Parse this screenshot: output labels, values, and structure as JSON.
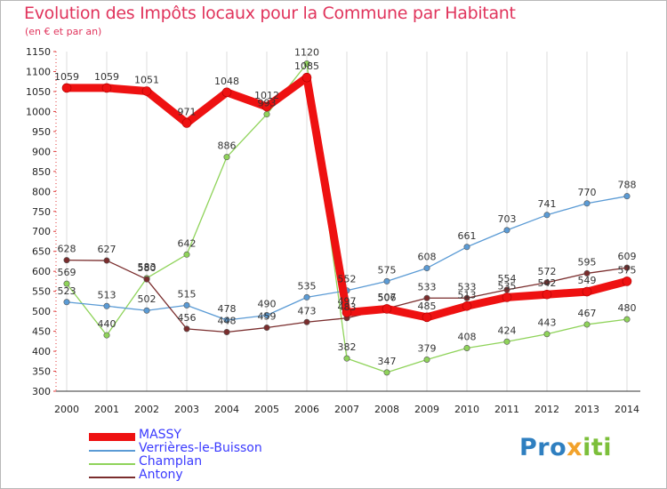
{
  "title": "Evolution des Impôts locaux pour la Commune par Habitant",
  "subtitle": "(en € et par an)",
  "brand": {
    "part1": "Pro",
    "part2": "x",
    "part3": "iti"
  },
  "chart_data": {
    "type": "line",
    "x": [
      "2000",
      "2001",
      "2002",
      "2003",
      "2004",
      "2005",
      "2006",
      "2007",
      "2008",
      "2009",
      "2010",
      "2011",
      "2012",
      "2013",
      "2014"
    ],
    "ylim": [
      300,
      1150
    ],
    "yticks": [
      300,
      350,
      400,
      450,
      500,
      550,
      600,
      650,
      700,
      750,
      800,
      850,
      900,
      950,
      1000,
      1050,
      1100,
      1150
    ],
    "grid": "vertical",
    "legend_position": "bottom-left",
    "series": [
      {
        "name": "MASSY",
        "color": "#ee1111",
        "width": "thick",
        "values": [
          1059,
          1059,
          1051,
          971,
          1048,
          1012,
          1085,
          497,
          506,
          485,
          513,
          535,
          542,
          549,
          575
        ]
      },
      {
        "name": "Verrières-le-Buisson",
        "color": "#5b9bd5",
        "width": "thin",
        "values": [
          523,
          513,
          502,
          515,
          478,
          490,
          535,
          552,
          575,
          608,
          661,
          703,
          741,
          770,
          788
        ]
      },
      {
        "name": "Champlan",
        "color": "#8fd35a",
        "width": "thin",
        "values": [
          569,
          440,
          583,
          642,
          886,
          993,
          1120,
          382,
          347,
          379,
          408,
          424,
          443,
          467,
          480
        ]
      },
      {
        "name": "Antony",
        "color": "#7a2d2d",
        "width": "thin",
        "values": [
          628,
          627,
          580,
          456,
          448,
          459,
          473,
          483,
          507,
          533,
          533,
          554,
          572,
          595,
          609
        ]
      }
    ],
    "data_labels": [
      {
        "series": 0,
        "labels": [
          "1059",
          "1059",
          "1051",
          "971",
          "1048",
          "1012",
          "1085",
          "497",
          "506",
          "485",
          "513",
          "535",
          "542",
          "549",
          "575"
        ]
      },
      {
        "series": 1,
        "labels": [
          "523",
          "513",
          "502",
          "515",
          "478",
          "490",
          "535",
          "552",
          "575",
          "608",
          "661",
          "703",
          "741",
          "770",
          "788"
        ]
      },
      {
        "series": 2,
        "labels": [
          "569",
          "440",
          "583",
          "642",
          "886",
          "993",
          "1120",
          "382",
          "347",
          "379",
          "408",
          "424",
          "443",
          "467",
          "480"
        ]
      },
      {
        "series": 3,
        "labels": [
          "628",
          "627",
          "580",
          "456",
          "448",
          "459",
          "473",
          "483",
          "507",
          "533",
          "533",
          "554",
          "572",
          "595",
          "609"
        ]
      }
    ]
  }
}
